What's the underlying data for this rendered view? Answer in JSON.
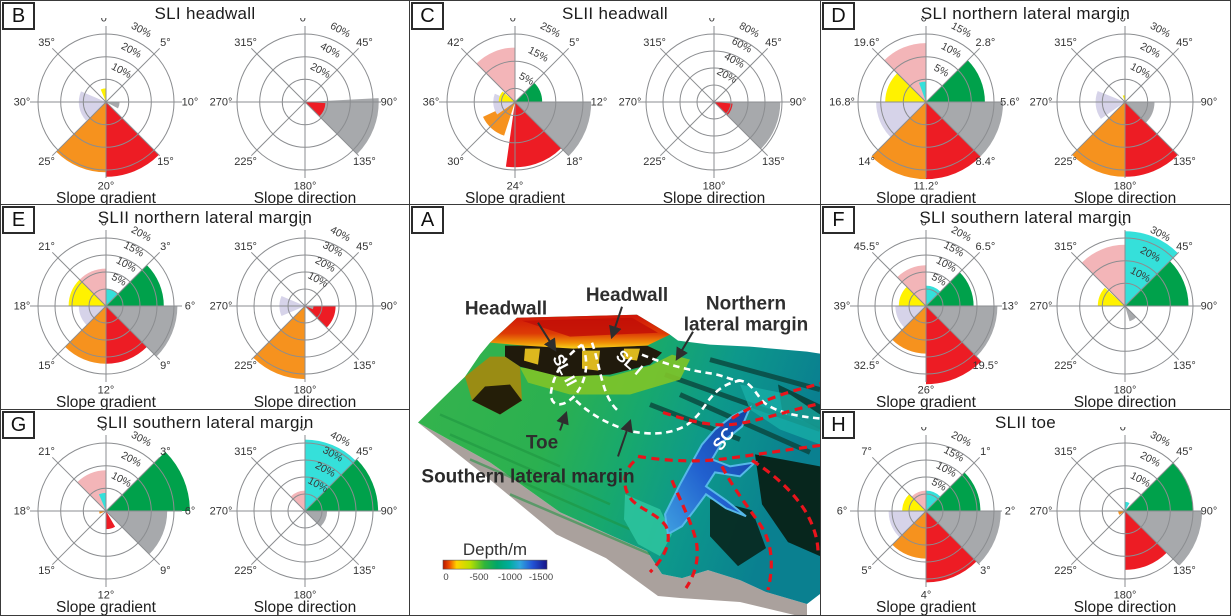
{
  "palette": {
    "red": "#ed1c24",
    "orange": "#f6921e",
    "yellow": "#fff200",
    "green": "#00a14b",
    "gray": "#a7a9ac",
    "pink": "#f3b5b8",
    "lavender": "#d6d3e9",
    "cyan": "#35e0da"
  },
  "map": {
    "panel_letter": "A",
    "labels": {
      "headwall_left": "Headwall",
      "headwall_right": "Headwall",
      "northern_line1": "Northern",
      "northern_line2": "lateral margin",
      "toe": "Toe",
      "southern": "Southern lateral margin",
      "sl1": "SL I",
      "sl2": "SL II",
      "sc": "SC"
    },
    "legend": {
      "title": "Depth/m",
      "ticks": [
        "0",
        "-500",
        "-1000",
        "-1500"
      ]
    },
    "outline_colors": {
      "landslide_outline": "#ffffff",
      "channel_outline": "#e8141c"
    }
  },
  "chart_data": [
    {
      "panel": "B",
      "type": "rose-pair",
      "title": "SLI headwall",
      "roses": [
        {
          "subtitle": "Slope gradient",
          "max_pct": 30,
          "rings_pct": [
            10,
            20,
            30
          ],
          "axis_labels": [
            "0°",
            "5°",
            "10°",
            "15°",
            "20°",
            "25°",
            "30°",
            "35°"
          ],
          "wedges": [
            {
              "from": 135,
              "to": 180,
              "pct": 33,
              "color": "red"
            },
            {
              "from": 180,
              "to": 225,
              "pct": 31,
              "color": "orange"
            },
            {
              "from": 227,
              "to": 293,
              "pct": 12,
              "color": "lavender"
            },
            {
              "from": 337,
              "to": 360,
              "pct": 6,
              "color": "yellow"
            },
            {
              "from": 90,
              "to": 118,
              "pct": 6,
              "color": "gray"
            }
          ]
        },
        {
          "subtitle": "Slope direction",
          "max_pct": 60,
          "rings_pct": [
            20,
            40,
            60
          ],
          "axis_labels": [
            "0°",
            "45°",
            "90°",
            "135°",
            "180°",
            "225°",
            "270°",
            "315°"
          ],
          "wedges": [
            {
              "from": 87,
              "to": 135,
              "pct": 65,
              "color": "gray"
            },
            {
              "from": 93,
              "to": 135,
              "pct": 18,
              "color": "red"
            }
          ]
        }
      ]
    },
    {
      "panel": "C",
      "type": "rose-pair",
      "title": "SLII headwall",
      "roses": [
        {
          "subtitle": "Slope gradient",
          "max_pct": 25,
          "rings_pct": [
            5,
            15,
            25
          ],
          "axis_labels": [
            "0°",
            "5°",
            "12°",
            "18°",
            "24°",
            "30°",
            "36°",
            "42°"
          ],
          "wedges": [
            {
              "from": 315,
              "to": 360,
              "pct": 20,
              "color": "pink"
            },
            {
              "from": 45,
              "to": 90,
              "pct": 10,
              "color": "green"
            },
            {
              "from": 90,
              "to": 135,
              "pct": 28,
              "color": "gray"
            },
            {
              "from": 135,
              "to": 188,
              "pct": 24,
              "color": "red"
            },
            {
              "from": 198,
              "to": 245,
              "pct": 13,
              "color": "orange"
            },
            {
              "from": 235,
              "to": 292,
              "pct": 8,
              "color": "lavender"
            },
            {
              "from": 270,
              "to": 310,
              "pct": 6,
              "color": "yellow"
            }
          ]
        },
        {
          "subtitle": "Slope direction",
          "max_pct": 80,
          "rings_pct": [
            20,
            40,
            60,
            80
          ],
          "axis_labels": [
            "0°",
            "45°",
            "90°",
            "135°",
            "180°",
            "225°",
            "270°",
            "315°"
          ],
          "wedges": [
            {
              "from": 90,
              "to": 135,
              "pct": 78,
              "color": "gray"
            },
            {
              "from": 95,
              "to": 133,
              "pct": 22,
              "color": "red"
            }
          ]
        }
      ]
    },
    {
      "panel": "D",
      "type": "rose-pair",
      "title": "SLI northern lateral margin",
      "roses": [
        {
          "subtitle": "Slope gradient",
          "max_pct": 15,
          "rings_pct": [
            5,
            10,
            15
          ],
          "axis_labels": [
            "0°",
            "2.8°",
            "5.6°",
            "8.4°",
            "11.2°",
            "14°",
            "16.8°",
            "19.6°"
          ],
          "wedges": [
            {
              "from": 315,
              "to": 360,
              "pct": 13,
              "color": "pink"
            },
            {
              "from": 340,
              "to": 360,
              "pct": 4.5,
              "color": "cyan"
            },
            {
              "from": 45,
              "to": 90,
              "pct": 13,
              "color": "green"
            },
            {
              "from": 90,
              "to": 135,
              "pct": 17,
              "color": "gray"
            },
            {
              "from": 135,
              "to": 180,
              "pct": 17,
              "color": "red"
            },
            {
              "from": 180,
              "to": 225,
              "pct": 17,
              "color": "orange"
            },
            {
              "from": 225,
              "to": 270,
              "pct": 11,
              "color": "lavender"
            },
            {
              "from": 270,
              "to": 315,
              "pct": 9,
              "color": "yellow"
            }
          ]
        },
        {
          "subtitle": "Slope direction",
          "max_pct": 30,
          "rings_pct": [
            10,
            20,
            30
          ],
          "axis_labels": [
            "0°",
            "45°",
            "90°",
            "135°",
            "180°",
            "225°",
            "270°",
            "315°"
          ],
          "wedges": [
            {
              "from": 135,
              "to": 180,
              "pct": 33,
              "color": "red"
            },
            {
              "from": 180,
              "to": 225,
              "pct": 33,
              "color": "orange"
            },
            {
              "from": 235,
              "to": 292,
              "pct": 13,
              "color": "lavender"
            },
            {
              "from": 90,
              "to": 135,
              "pct": 13,
              "color": "gray"
            },
            {
              "from": 340,
              "to": 360,
              "pct": 3,
              "color": "yellow"
            }
          ]
        }
      ]
    },
    {
      "panel": "E",
      "type": "rose-pair",
      "title": "SLII northern lateral margin",
      "roses": [
        {
          "subtitle": "Slope gradient",
          "max_pct": 20,
          "rings_pct": [
            5,
            10,
            15,
            20
          ],
          "axis_labels": [
            "0°",
            "3°",
            "6°",
            "9°",
            "12°",
            "15°",
            "18°",
            "21°"
          ],
          "wedges": [
            {
              "from": 0,
              "to": 45,
              "pct": 5,
              "color": "cyan"
            },
            {
              "from": 45,
              "to": 90,
              "pct": 17,
              "color": "green"
            },
            {
              "from": 90,
              "to": 135,
              "pct": 21,
              "color": "gray"
            },
            {
              "from": 135,
              "to": 180,
              "pct": 17,
              "color": "red"
            },
            {
              "from": 180,
              "to": 225,
              "pct": 17,
              "color": "orange"
            },
            {
              "from": 225,
              "to": 270,
              "pct": 8,
              "color": "lavender"
            },
            {
              "from": 270,
              "to": 315,
              "pct": 11,
              "color": "yellow"
            },
            {
              "from": 315,
              "to": 360,
              "pct": 11,
              "color": "pink"
            }
          ]
        },
        {
          "subtitle": "Slope direction",
          "max_pct": 40,
          "rings_pct": [
            10,
            20,
            30,
            40
          ],
          "axis_labels": [
            "0°",
            "45°",
            "90°",
            "135°",
            "180°",
            "225°",
            "270°",
            "315°"
          ],
          "wedges": [
            {
              "from": 90,
              "to": 135,
              "pct": 18,
              "color": "red"
            },
            {
              "from": 90,
              "to": 112,
              "pct": 5,
              "color": "gray"
            },
            {
              "from": 180,
              "to": 225,
              "pct": 43,
              "color": "orange"
            },
            {
              "from": 247,
              "to": 293,
              "pct": 15,
              "color": "lavender"
            }
          ]
        }
      ]
    },
    {
      "panel": "F",
      "type": "rose-pair",
      "title": "SLI southern lateral margin",
      "roses": [
        {
          "subtitle": "Slope gradient",
          "max_pct": 20,
          "rings_pct": [
            5,
            10,
            15,
            20
          ],
          "axis_labels": [
            "0°",
            "6.5°",
            "13°",
            "19.5°",
            "26°",
            "32.5°",
            "39°",
            "45.5°"
          ],
          "wedges": [
            {
              "from": 0,
              "to": 45,
              "pct": 6,
              "color": "cyan"
            },
            {
              "from": 45,
              "to": 90,
              "pct": 14,
              "color": "green"
            },
            {
              "from": 90,
              "to": 135,
              "pct": 21,
              "color": "gray"
            },
            {
              "from": 135,
              "to": 180,
              "pct": 23,
              "color": "red"
            },
            {
              "from": 180,
              "to": 225,
              "pct": 14,
              "color": "orange"
            },
            {
              "from": 225,
              "to": 270,
              "pct": 9,
              "color": "lavender"
            },
            {
              "from": 270,
              "to": 315,
              "pct": 8,
              "color": "yellow"
            },
            {
              "from": 315,
              "to": 360,
              "pct": 12,
              "color": "pink"
            }
          ]
        },
        {
          "subtitle": "Slope direction",
          "max_pct": 30,
          "rings_pct": [
            10,
            20,
            30
          ],
          "axis_labels": [
            "0°",
            "45°",
            "90°",
            "135°",
            "180°",
            "225°",
            "270°",
            "315°"
          ],
          "wedges": [
            {
              "from": 0,
              "to": 45,
              "pct": 33,
              "color": "cyan"
            },
            {
              "from": 45,
              "to": 90,
              "pct": 28,
              "color": "green"
            },
            {
              "from": 315,
              "to": 360,
              "pct": 27,
              "color": "pink"
            },
            {
              "from": 270,
              "to": 312,
              "pct": 12,
              "color": "yellow"
            },
            {
              "from": 135,
              "to": 163,
              "pct": 7,
              "color": "gray"
            }
          ]
        }
      ]
    },
    {
      "panel": "G",
      "type": "rose-pair",
      "title": "SLII southern lateral margin",
      "roses": [
        {
          "subtitle": "Slope gradient",
          "max_pct": 30,
          "rings_pct": [
            10,
            20,
            30
          ],
          "axis_labels": [
            "0°",
            "3°",
            "6°",
            "9°",
            "12°",
            "15°",
            "18°",
            "21°"
          ],
          "wedges": [
            {
              "from": 45,
              "to": 90,
              "pct": 37,
              "color": "green"
            },
            {
              "from": 90,
              "to": 135,
              "pct": 27,
              "color": "gray"
            },
            {
              "from": 150,
              "to": 180,
              "pct": 8,
              "color": "red"
            },
            {
              "from": 315,
              "to": 360,
              "pct": 18,
              "color": "pink"
            },
            {
              "from": 337,
              "to": 360,
              "pct": 8,
              "color": "cyan"
            },
            {
              "from": 247,
              "to": 270,
              "pct": 3,
              "color": "orange"
            }
          ]
        },
        {
          "subtitle": "Slope direction",
          "max_pct": 40,
          "rings_pct": [
            10,
            20,
            30,
            40
          ],
          "axis_labels": [
            "0°",
            "45°",
            "90°",
            "135°",
            "180°",
            "225°",
            "270°",
            "315°"
          ],
          "wedges": [
            {
              "from": 0,
              "to": 45,
              "pct": 42,
              "color": "cyan"
            },
            {
              "from": 45,
              "to": 90,
              "pct": 43,
              "color": "green"
            },
            {
              "from": 90,
              "to": 135,
              "pct": 13,
              "color": "gray"
            },
            {
              "from": 315,
              "to": 360,
              "pct": 12,
              "color": "pink"
            }
          ]
        }
      ]
    },
    {
      "panel": "H",
      "type": "rose-pair",
      "title": "SLII toe",
      "roses": [
        {
          "subtitle": "Slope gradient",
          "max_pct": 20,
          "rings_pct": [
            5,
            10,
            15,
            20
          ],
          "axis_labels": [
            "0°",
            "1°",
            "2°",
            "3°",
            "4°",
            "5°",
            "6°",
            "7°"
          ],
          "wedges": [
            {
              "from": 0,
              "to": 45,
              "pct": 6,
              "color": "cyan"
            },
            {
              "from": 45,
              "to": 90,
              "pct": 16,
              "color": "green"
            },
            {
              "from": 90,
              "to": 135,
              "pct": 22,
              "color": "gray"
            },
            {
              "from": 135,
              "to": 180,
              "pct": 21,
              "color": "red"
            },
            {
              "from": 180,
              "to": 225,
              "pct": 14,
              "color": "orange"
            },
            {
              "from": 225,
              "to": 270,
              "pct": 11,
              "color": "lavender"
            },
            {
              "from": 270,
              "to": 315,
              "pct": 7,
              "color": "yellow"
            },
            {
              "from": 315,
              "to": 360,
              "pct": 6,
              "color": "pink"
            }
          ]
        },
        {
          "subtitle": "Slope direction",
          "max_pct": 30,
          "rings_pct": [
            10,
            20,
            30
          ],
          "axis_labels": [
            "0°",
            "45°",
            "90°",
            "135°",
            "180°",
            "225°",
            "270°",
            "315°"
          ],
          "wedges": [
            {
              "from": 45,
              "to": 90,
              "pct": 30,
              "color": "green"
            },
            {
              "from": 90,
              "to": 135,
              "pct": 34,
              "color": "gray"
            },
            {
              "from": 135,
              "to": 180,
              "pct": 26,
              "color": "red"
            },
            {
              "from": 0,
              "to": 30,
              "pct": 4,
              "color": "cyan"
            },
            {
              "from": 235,
              "to": 268,
              "pct": 3,
              "color": "orange"
            }
          ]
        }
      ]
    }
  ]
}
